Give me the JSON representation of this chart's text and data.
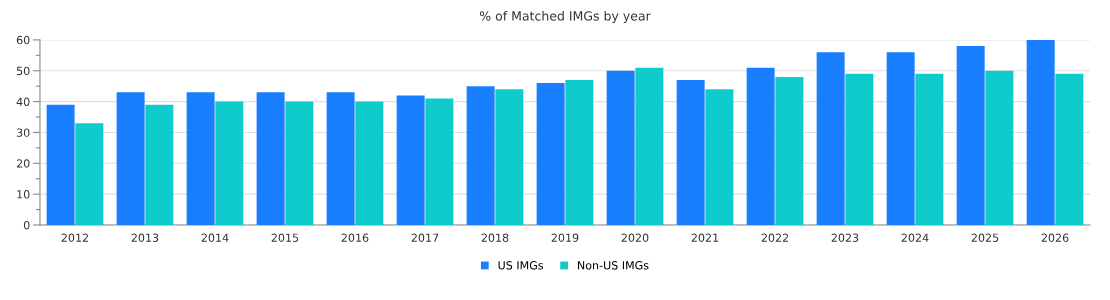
{
  "chart_data": {
    "type": "bar",
    "title": "% of Matched IMGs by year",
    "categories": [
      "2012",
      "2013",
      "2014",
      "2015",
      "2016",
      "2017",
      "2018",
      "2019",
      "2020",
      "2021",
      "2022",
      "2023",
      "2024",
      "2025",
      "2026"
    ],
    "series": [
      {
        "name": "US IMGs",
        "color": "#1a7ffe",
        "values": [
          39,
          43,
          43,
          43,
          43,
          42,
          45,
          46,
          50,
          47,
          51,
          56,
          56,
          58,
          60
        ]
      },
      {
        "name": "Non-US IMGs",
        "color": "#0fcbcb",
        "values": [
          33,
          39,
          40,
          40,
          40,
          41,
          44,
          47,
          51,
          44,
          48,
          49,
          49,
          50,
          49
        ]
      }
    ],
    "ylim": [
      0,
      60
    ],
    "yticks": [
      0,
      {
        "value": 5,
        "label": null
      },
      10,
      {
        "value": 15,
        "label": null
      },
      20,
      {
        "value": 25,
        "label": null
      },
      30,
      {
        "value": 35,
        "label": null
      },
      40,
      {
        "value": 45,
        "label": null
      },
      50,
      {
        "value": 55,
        "label": null
      },
      60
    ],
    "grid": "y",
    "legend": "bottom"
  }
}
